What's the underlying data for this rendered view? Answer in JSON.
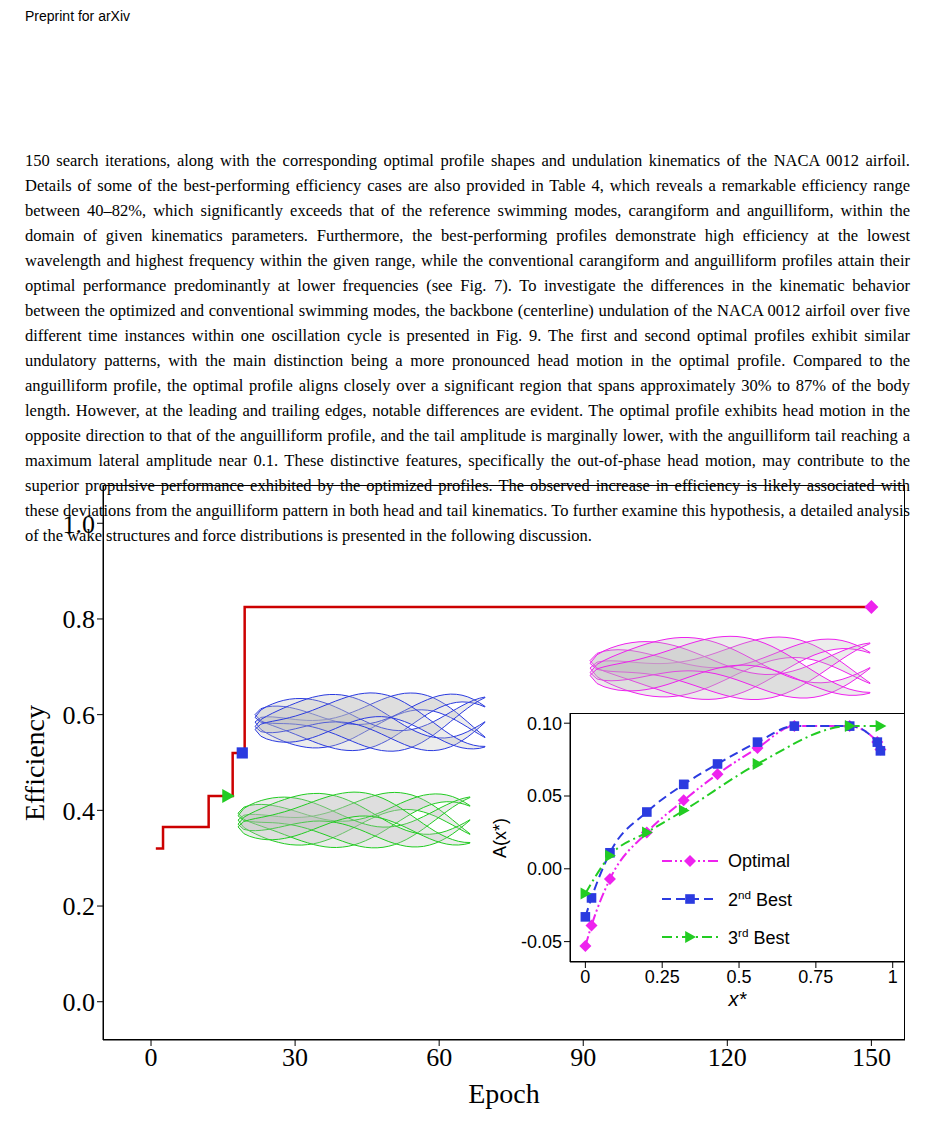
{
  "header": "Preprint for arXiv",
  "body_text": "150 search iterations, along with the corresponding optimal profile shapes and undulation kinematics of the NACA 0012 airfoil. Details of some of the best-performing efficiency cases are also provided in Table 4, which reveals a remarkable efficiency range between 40–82%, which significantly exceeds that of the reference swimming modes, carangiform and anguilliform, within the domain of given kinematics parameters. Furthermore, the best-performing profiles demonstrate high efficiency at the lowest wavelength and highest frequency within the given range, while the conventional carangiform and anguilliform profiles attain their optimal performance predominantly at lower frequencies (see Fig. 7). To investigate the differences in the kinematic behavior between the optimized and conventional swimming modes, the backbone (centerline) undulation of the NACA 0012 airfoil over five different time instances within one oscillation cycle is presented in Fig. 9. The first and second optimal profiles exhibit similar undulatory patterns, with the main distinction being a more pronounced head motion in the optimal profile. Compared to the anguilliform profile, the optimal profile aligns closely over a significant region that spans approximately 30% to 87% of the body length. However, at the leading and trailing edges, notable differences are evident. The optimal profile exhibits head motion in the opposite direction to that of the anguilliform profile, and the tail amplitude is marginally lower, with the anguilliform tail reaching a maximum lateral amplitude near 0.1. These distinctive features, specifically the out-of-phase head motion, may contribute to the superior propulsive performance exhibited by the optimized profiles. The observed increase in efficiency is likely associated with these deviations from the anguilliform pattern in both head and tail kinematics. To further examine this hypothesis, a detailed analysis of the wake structures and force distributions is presented in the following discussion.",
  "chart_data": [
    {
      "type": "line",
      "xlabel": "Epoch",
      "ylabel": "Efficiency",
      "xlim": [
        -10,
        157
      ],
      "xticks": [
        0,
        30,
        60,
        90,
        120,
        150
      ],
      "ylim": [
        -0.08,
        1.08
      ],
      "yticks": [
        {
          "value": 0,
          "label": "0.0"
        },
        0.2,
        0.4,
        0.6,
        0.8,
        {
          "value": 1,
          "label": "1.0"
        }
      ],
      "series": [
        {
          "type": "line",
          "line_style": "step",
          "color": "#cc0000",
          "x": [
            1,
            2.5,
            12,
            17,
            19.5,
            150
          ],
          "values": [
            0.32,
            0.365,
            0.43,
            0.52,
            0.825,
            0.825
          ]
        },
        {
          "type": "scatter",
          "marker": "triangle",
          "color": "#22cc22",
          "x": [
            16
          ],
          "values": [
            0.43
          ]
        },
        {
          "type": "scatter",
          "marker": "square",
          "color": "#2b3be0",
          "x": [
            19
          ],
          "values": [
            0.52
          ]
        },
        {
          "type": "scatter",
          "marker": "diamond",
          "color": "#ee22ee",
          "x": [
            150
          ],
          "values": [
            0.825
          ]
        }
      ]
    },
    {
      "type": "line",
      "xlabel": "x*",
      "ylabel": "A(x*)",
      "xlim": [
        -0.05,
        1.04
      ],
      "xticks": [
        0,
        0.25,
        0.5,
        0.75,
        1
      ],
      "ylim": [
        -0.064,
        0.107
      ],
      "yticks": [
        -0.05,
        {
          "value": 0,
          "label": "0.00"
        },
        0.05,
        {
          "value": 0.1,
          "label": "0.10"
        }
      ],
      "legend": "lower right",
      "series": [
        {
          "name": "Optimal",
          "color": "#ee22ee",
          "marker": "diamond",
          "line_style": "dashdotdot",
          "x": [
            0,
            0.02,
            0.08,
            0.2,
            0.32,
            0.43,
            0.56,
            0.68,
            0.86,
            0.95,
            0.96
          ],
          "values": [
            -0.053,
            -0.039,
            -0.007,
            0.025,
            0.047,
            0.065,
            0.083,
            0.098,
            0.098,
            0.087,
            0.082
          ]
        },
        {
          "name": "2nd Best",
          "color": "#2b3be0",
          "marker": "square",
          "line_style": "dashed",
          "x": [
            0,
            0.02,
            0.08,
            0.2,
            0.32,
            0.43,
            0.56,
            0.68,
            0.86,
            0.95,
            0.96
          ],
          "values": [
            -0.033,
            -0.02,
            0.011,
            0.039,
            0.058,
            0.072,
            0.087,
            0.098,
            0.098,
            0.087,
            0.081
          ]
        },
        {
          "name": "3rd Best",
          "color": "#22cc22",
          "marker": "triangle",
          "line_style": "dashdot",
          "x": [
            0,
            0.08,
            0.2,
            0.32,
            0.56,
            0.86,
            0.96
          ],
          "values": [
            -0.017,
            0.009,
            0.025,
            0.04,
            0.072,
            0.098,
            0.098
          ]
        }
      ]
    }
  ]
}
